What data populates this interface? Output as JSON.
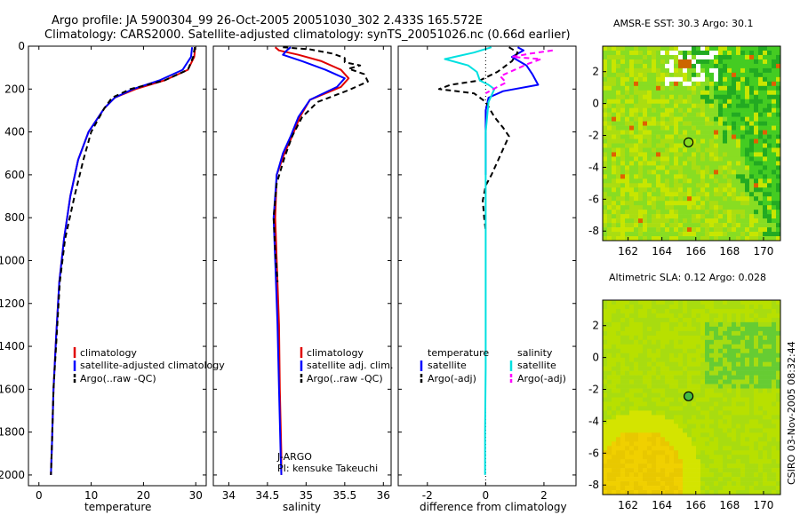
{
  "figure": {
    "title_line1": "Argo profile: JA 5900304_99 26-Oct-2005 20051030_302 2.433S 165.572E",
    "title_line2": "Climatology: CARS2000. Satellite-adjusted climatology: synTS_20051026.nc (0.66d earlier)",
    "side_label": "CSIRO 03-Nov-2005 08:32:44",
    "pi_line1": "J-ARGO",
    "pi_line2": "PI: kensuke Takeuchi"
  },
  "colors": {
    "climatology": "#e00000",
    "satellite": "#0000ff",
    "argo": "#000000",
    "satellite_diff": "#00e0e0",
    "argo_sal_diff": "#ff00ff",
    "zero_line": "#000000"
  },
  "chart_data": [
    {
      "id": "temperature_profile",
      "type": "line",
      "xlabel": "temperature",
      "ylabel": "",
      "xlim": [
        -2,
        32
      ],
      "ylim": [
        0,
        2050
      ],
      "y_inverted": true,
      "xticks": [
        0,
        10,
        20,
        30
      ],
      "yticks": [
        0,
        200,
        400,
        600,
        800,
        1000,
        1200,
        1400,
        1600,
        1800,
        2000
      ],
      "legend_location": "lower-right",
      "legend": [
        "climatology",
        "satellite-adjusted climatology",
        "Argo(..raw -QC)"
      ],
      "series": [
        {
          "name": "climatology",
          "style": "solid",
          "x": [
            29.9,
            29.7,
            28.5,
            24.0,
            18.5,
            14.5,
            12.5,
            9.5,
            7.5,
            6.0,
            4.8,
            3.9,
            3.3,
            2.8,
            2.5,
            2.3
          ],
          "y": [
            5,
            50,
            110,
            160,
            200,
            240,
            290,
            400,
            530,
            700,
            900,
            1100,
            1350,
            1600,
            1850,
            2000
          ]
        },
        {
          "name": "satellite-adjusted climatology",
          "style": "solid",
          "x": [
            29.3,
            29.1,
            27.5,
            23.0,
            18.0,
            14.5,
            12.5,
            9.5,
            7.5,
            6.0,
            4.8,
            3.9,
            3.3,
            2.8,
            2.5,
            2.3
          ],
          "y": [
            5,
            50,
            110,
            160,
            200,
            240,
            290,
            400,
            530,
            700,
            900,
            1100,
            1350,
            1600,
            1850,
            2000
          ]
        },
        {
          "name": "Argo(..raw -QC)",
          "style": "dashed",
          "x": [
            29.8,
            29.5,
            28.5,
            24.0,
            17.5,
            14.0,
            12.5,
            10.0,
            8.5,
            6.8,
            5.0,
            4.0,
            3.4,
            2.8,
            2.5,
            2.3
          ],
          "y": [
            5,
            50,
            110,
            160,
            200,
            240,
            290,
            400,
            530,
            700,
            900,
            1100,
            1350,
            1600,
            1850,
            2000
          ]
        }
      ]
    },
    {
      "id": "salinity_profile",
      "type": "line",
      "xlabel": "salinity",
      "xlim": [
        33.8,
        36.1
      ],
      "ylim": [
        0,
        2050
      ],
      "y_inverted": true,
      "xticks": [
        34,
        34.5,
        35,
        35.5,
        36
      ],
      "legend_location": "lower-right",
      "legend": [
        "climatology",
        "satellite adj. clim.",
        "Argo(..raw -QC)"
      ],
      "series": [
        {
          "name": "climatology",
          "style": "solid",
          "x": [
            34.6,
            34.65,
            34.9,
            35.2,
            35.45,
            35.55,
            35.45,
            35.05,
            34.92,
            34.82,
            34.72,
            34.62,
            34.6,
            34.62,
            34.65,
            34.66,
            34.68,
            34.68
          ],
          "y": [
            5,
            20,
            40,
            70,
            110,
            150,
            190,
            250,
            330,
            420,
            500,
            600,
            800,
            1000,
            1300,
            1600,
            1900,
            2000
          ]
        },
        {
          "name": "satellite adj. clim.",
          "style": "solid",
          "x": [
            34.8,
            34.75,
            34.7,
            34.95,
            35.25,
            35.5,
            35.4,
            35.05,
            34.9,
            34.8,
            34.7,
            34.62,
            34.58,
            34.6,
            34.63,
            34.65,
            34.67,
            34.68
          ],
          "y": [
            5,
            20,
            40,
            70,
            110,
            150,
            190,
            250,
            330,
            420,
            500,
            600,
            800,
            1000,
            1300,
            1600,
            1900,
            2000
          ]
        },
        {
          "name": "Argo(..raw -QC)",
          "style": "dashed",
          "x": [
            34.7,
            35.05,
            35.35,
            35.5,
            35.5,
            35.7,
            35.55,
            35.75,
            35.8,
            35.55,
            35.15,
            34.95,
            34.82,
            34.72,
            34.62,
            34.58,
            34.6,
            34.63
          ],
          "y": [
            5,
            15,
            35,
            55,
            75,
            90,
            105,
            130,
            165,
            205,
            260,
            330,
            420,
            520,
            640,
            800,
            950,
            1100
          ]
        }
      ]
    },
    {
      "id": "difference_profile",
      "type": "line",
      "xlabel": "difference from climatology",
      "xlim": [
        -3,
        3.1
      ],
      "ylim": [
        0,
        2050
      ],
      "y_inverted": true,
      "xticks": [
        -2,
        0,
        2
      ],
      "legend_location": "lower-right",
      "legend_headers": [
        "temperature",
        "salinity"
      ],
      "legend": [
        "satellite",
        "Argo(-adj)",
        "satellite",
        "Argo(-adj)"
      ],
      "series": [
        {
          "name": "temperature satellite",
          "style": "solid",
          "color_key": "satellite",
          "x": [
            1.1,
            1.3,
            0.9,
            1.4,
            1.6,
            1.8,
            0.6,
            0.1,
            0.0,
            0.0,
            0.0
          ],
          "y": [
            5,
            20,
            50,
            90,
            130,
            180,
            210,
            240,
            300,
            500,
            600
          ]
        },
        {
          "name": "temperature Argo(-adj)",
          "style": "dashed",
          "color_key": "argo",
          "x": [
            0.8,
            1.1,
            0.9,
            0.4,
            -0.2,
            -1.2,
            -1.6,
            -0.4,
            0.0,
            0.3,
            0.6,
            0.8,
            0.6,
            0.4,
            0.2,
            0.0,
            -0.1,
            -0.05,
            0.0
          ],
          "y": [
            5,
            30,
            70,
            120,
            160,
            180,
            200,
            220,
            260,
            330,
            380,
            420,
            480,
            540,
            600,
            650,
            720,
            800,
            860
          ]
        },
        {
          "name": "salinity satellite",
          "style": "solid",
          "color_key": "satellite_diff",
          "x": [
            0.2,
            -0.4,
            -1.4,
            -0.6,
            -0.3,
            -0.2,
            0.1,
            0.3,
            0.1,
            0.0,
            0.0,
            0.0,
            0.0,
            0.0,
            -0.02,
            -0.02
          ],
          "y": [
            5,
            30,
            60,
            90,
            120,
            160,
            180,
            200,
            260,
            400,
            600,
            800,
            1100,
            1500,
            1800,
            2000
          ]
        },
        {
          "name": "salinity Argo(-adj)",
          "style": "dashed",
          "color_key": "argo_sal_diff",
          "x": [
            2.3,
            1.5,
            0.9,
            1.9,
            1.5,
            1.0,
            0.5,
            0.7,
            0.4,
            0.0
          ],
          "y": [
            20,
            35,
            50,
            60,
            80,
            110,
            140,
            170,
            190,
            220
          ]
        }
      ]
    },
    {
      "id": "sst_map",
      "type": "heatmap",
      "title": "AMSR-E SST: 30.3 Argo: 30.1",
      "xlim": [
        160.5,
        171
      ],
      "ylim": [
        -8.6,
        3.6
      ],
      "xticks": [
        162,
        164,
        166,
        168,
        170
      ],
      "yticks": [
        2,
        0,
        -2,
        -4,
        -6,
        -8
      ],
      "float_position": {
        "lon": 165.572,
        "lat": -2.433
      }
    },
    {
      "id": "sla_map",
      "type": "heatmap",
      "title": "Altimetric SLA: 0.12 Argo: 0.028",
      "xlim": [
        160.5,
        171
      ],
      "ylim": [
        -8.6,
        3.6
      ],
      "xticks": [
        162,
        164,
        166,
        168,
        170
      ],
      "yticks": [
        2,
        0,
        -2,
        -4,
        -6,
        -8
      ],
      "float_position": {
        "lon": 165.572,
        "lat": -2.433
      }
    }
  ]
}
